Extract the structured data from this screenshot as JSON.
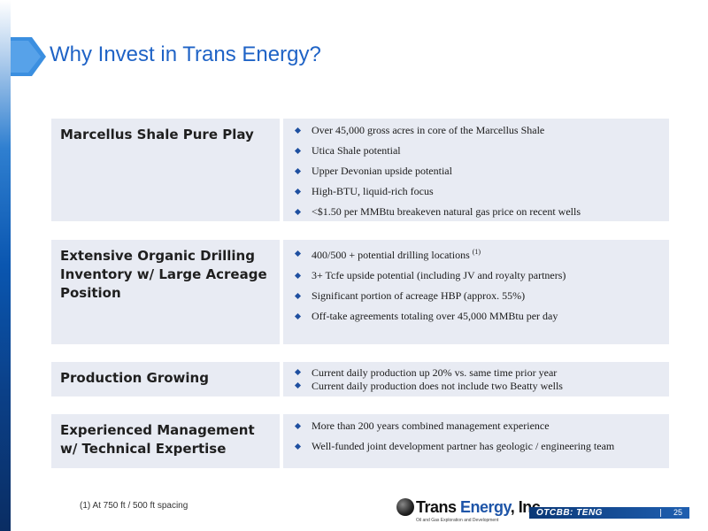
{
  "slide": {
    "title": "Why Invest in Trans Energy?",
    "page_number": "25",
    "ticker": "OTCBB: TENG",
    "footnote": "(1)  At 750 ft / 500 ft spacing",
    "logo": {
      "name_part1": "Trans ",
      "name_part2": "Energy",
      "name_part3": ", Inc.",
      "tagline": "Oil and Gas Exploration and Development"
    }
  },
  "rows": [
    {
      "label": "Marcellus Shale Pure Play",
      "bullets": [
        "Over 45,000 gross acres in core of the Marcellus Shale",
        "Utica Shale potential",
        "Upper Devonian upside potential",
        "High-BTU, liquid-rich focus",
        "<$1.50 per MMBtu breakeven natural gas price on recent wells"
      ]
    },
    {
      "label": "Extensive Organic Drilling Inventory w/ Large Acreage Position",
      "bullets": [
        "400/500 + potential drilling locations",
        "3+ Tcfe upside potential (including JV and royalty partners)",
        "Significant portion of acreage HBP (approx. 55%)",
        "Off-take agreements totaling over 45,000 MMBtu per day"
      ],
      "first_bullet_note": "(1)"
    },
    {
      "label": "Production Growing",
      "bullets": [
        "Current daily production up 20% vs. same time prior year",
        "Current daily production does not include two Beatty wells"
      ]
    },
    {
      "label": "Experienced Management w/ Technical Expertise",
      "bullets": [
        "More than 200 years combined management experience",
        "Well-funded joint development partner has geologic / engineering team"
      ]
    }
  ],
  "colors": {
    "title": "#1f63c6",
    "cell_background": "#e8ebf3",
    "bullet": "#1e4fa0",
    "ticker_bar": "#0a3877"
  },
  "icons": {
    "bullet": "diamond-bullet-icon",
    "title_marker": "arrow-chevron-icon",
    "logo": "globe-logo-icon"
  }
}
